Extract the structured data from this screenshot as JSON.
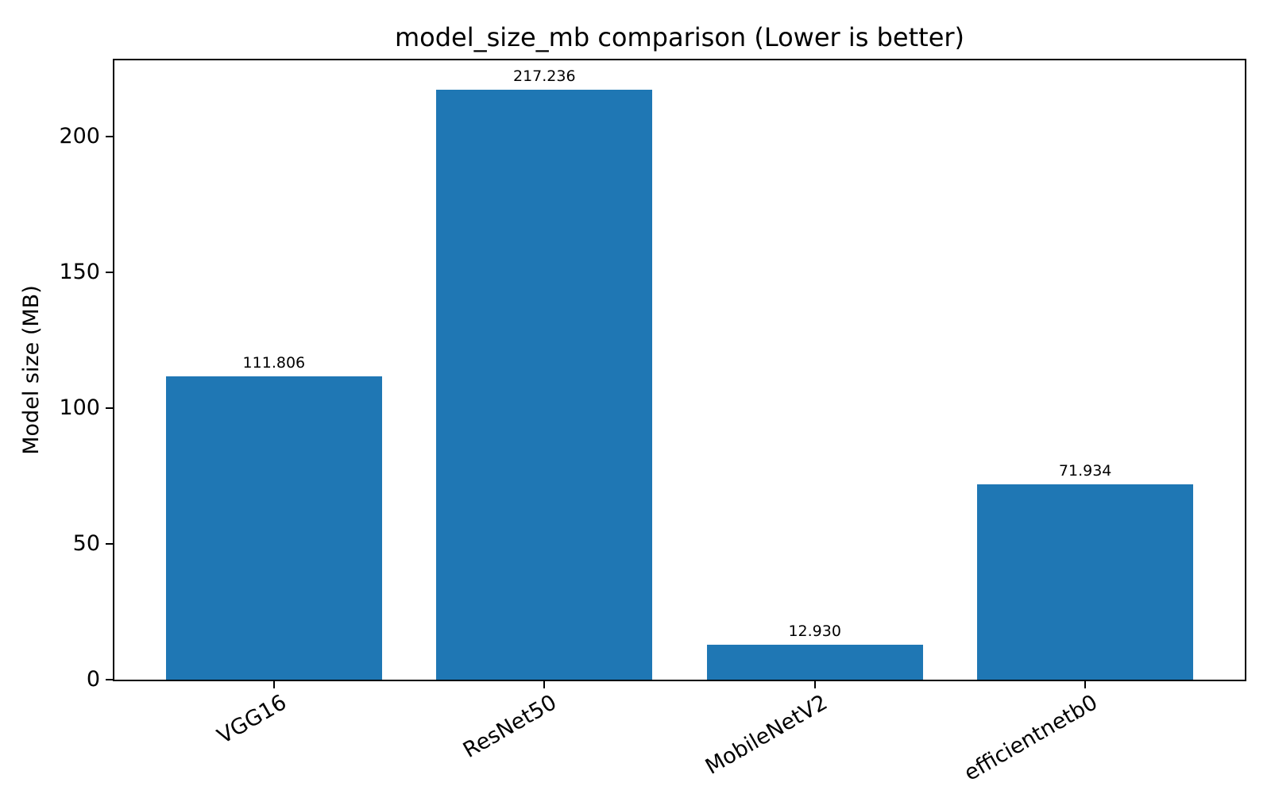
{
  "chart_data": {
    "type": "bar",
    "title": "model_size_mb comparison (Lower is better)",
    "categories": [
      "VGG16",
      "ResNet50",
      "MobileNetV2",
      "efficientnetb0"
    ],
    "values": [
      111.806,
      217.236,
      12.93,
      71.934
    ],
    "value_labels": [
      "111.806",
      "217.236",
      "12.930",
      "71.934"
    ],
    "xlabel": "",
    "ylabel": "Model size (MB)",
    "ylim": [
      0,
      228
    ],
    "yticks": [
      0,
      50,
      100,
      150,
      200
    ],
    "x_tick_rotation_deg": 30,
    "bar_color": "#1f77b4",
    "text_color": "#000000",
    "grid": false,
    "legend": null
  }
}
